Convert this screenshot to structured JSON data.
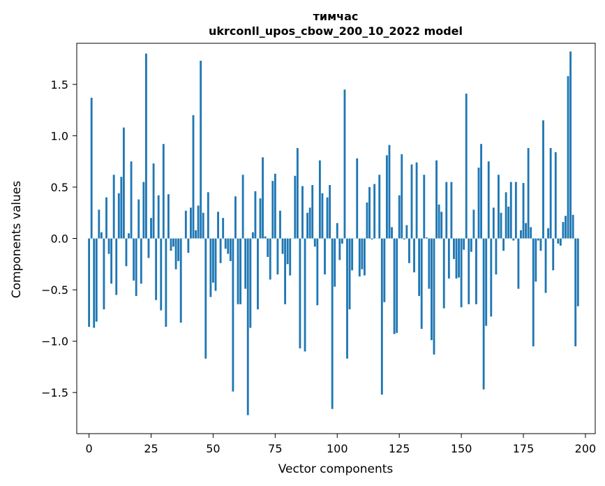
{
  "chart_data": {
    "type": "bar",
    "title_line1": "тимчас",
    "title_line2": "ukrconll_upos_cbow_200_10_2022 model",
    "xlabel": "Vector components",
    "ylabel": "Components values",
    "xlim": [
      -4.95,
      203.95
    ],
    "ylim": [
      -1.9,
      1.9
    ],
    "x_ticks": [
      0,
      25,
      50,
      75,
      100,
      125,
      150,
      175,
      200
    ],
    "y_ticks": [
      -1.5,
      -1.0,
      -0.5,
      0.0,
      0.5,
      1.0,
      1.5
    ],
    "y_tick_labels": [
      "−1.5",
      "−1.0",
      "−0.5",
      "0.0",
      "0.5",
      "1.0",
      "1.5"
    ],
    "bar_color": "#1f77b4",
    "grid": false,
    "values": [
      -0.86,
      1.37,
      -0.87,
      -0.81,
      0.28,
      0.06,
      -0.69,
      0.4,
      -0.15,
      -0.44,
      0.62,
      -0.55,
      0.44,
      0.6,
      1.08,
      -0.27,
      0.05,
      0.75,
      -0.41,
      -0.56,
      0.38,
      -0.44,
      0.55,
      1.8,
      -0.19,
      0.2,
      0.73,
      -0.6,
      0.42,
      -0.7,
      0.92,
      -0.86,
      0.43,
      -0.12,
      -0.08,
      -0.3,
      -0.22,
      -0.82,
      0.0,
      0.27,
      -0.14,
      0.3,
      1.2,
      0.08,
      0.32,
      1.73,
      0.25,
      -1.17,
      0.45,
      -0.57,
      -0.43,
      -0.51,
      0.26,
      -0.24,
      0.2,
      -0.1,
      -0.15,
      -0.22,
      -1.49,
      0.41,
      -0.64,
      -0.64,
      0.62,
      -0.49,
      -1.72,
      -0.87,
      0.06,
      0.46,
      -0.69,
      0.39,
      0.79,
      0.02,
      -0.18,
      -0.4,
      0.56,
      0.63,
      -0.35,
      0.27,
      -0.15,
      -0.64,
      -0.25,
      -0.36,
      0.0,
      0.61,
      0.88,
      -1.07,
      0.51,
      -1.1,
      0.25,
      0.3,
      0.52,
      -0.08,
      -0.65,
      0.76,
      0.44,
      -0.35,
      0.4,
      0.52,
      -1.66,
      -0.47,
      0.15,
      -0.21,
      -0.05,
      1.45,
      -1.17,
      -0.69,
      -0.31,
      0.0,
      0.78,
      -0.37,
      -0.3,
      -0.36,
      0.35,
      0.5,
      -0.01,
      0.53,
      0.0,
      0.62,
      -1.52,
      -0.62,
      0.81,
      0.91,
      0.11,
      -0.93,
      -0.92,
      0.42,
      0.82,
      -0.01,
      0.13,
      -0.24,
      0.72,
      -0.33,
      0.74,
      -0.56,
      -0.88,
      0.62,
      0.01,
      -0.49,
      -0.99,
      -1.13,
      0.76,
      0.33,
      0.26,
      -0.68,
      0.55,
      -0.39,
      0.55,
      -0.2,
      -0.39,
      -0.38,
      -0.67,
      -0.11,
      1.41,
      -0.64,
      -0.13,
      0.28,
      -0.64,
      0.69,
      0.92,
      -1.47,
      -0.85,
      0.75,
      -0.76,
      0.3,
      -0.35,
      0.62,
      0.25,
      -0.12,
      0.45,
      0.31,
      0.55,
      -0.02,
      0.55,
      -0.49,
      0.08,
      0.54,
      0.15,
      0.88,
      0.11,
      -1.05,
      -0.42,
      -0.02,
      -0.12,
      1.15,
      -0.53,
      0.1,
      0.88,
      -0.31,
      0.84,
      -0.05,
      -0.07,
      0.16,
      0.22,
      1.58,
      1.82,
      0.23,
      -1.05,
      -0.66
    ]
  }
}
